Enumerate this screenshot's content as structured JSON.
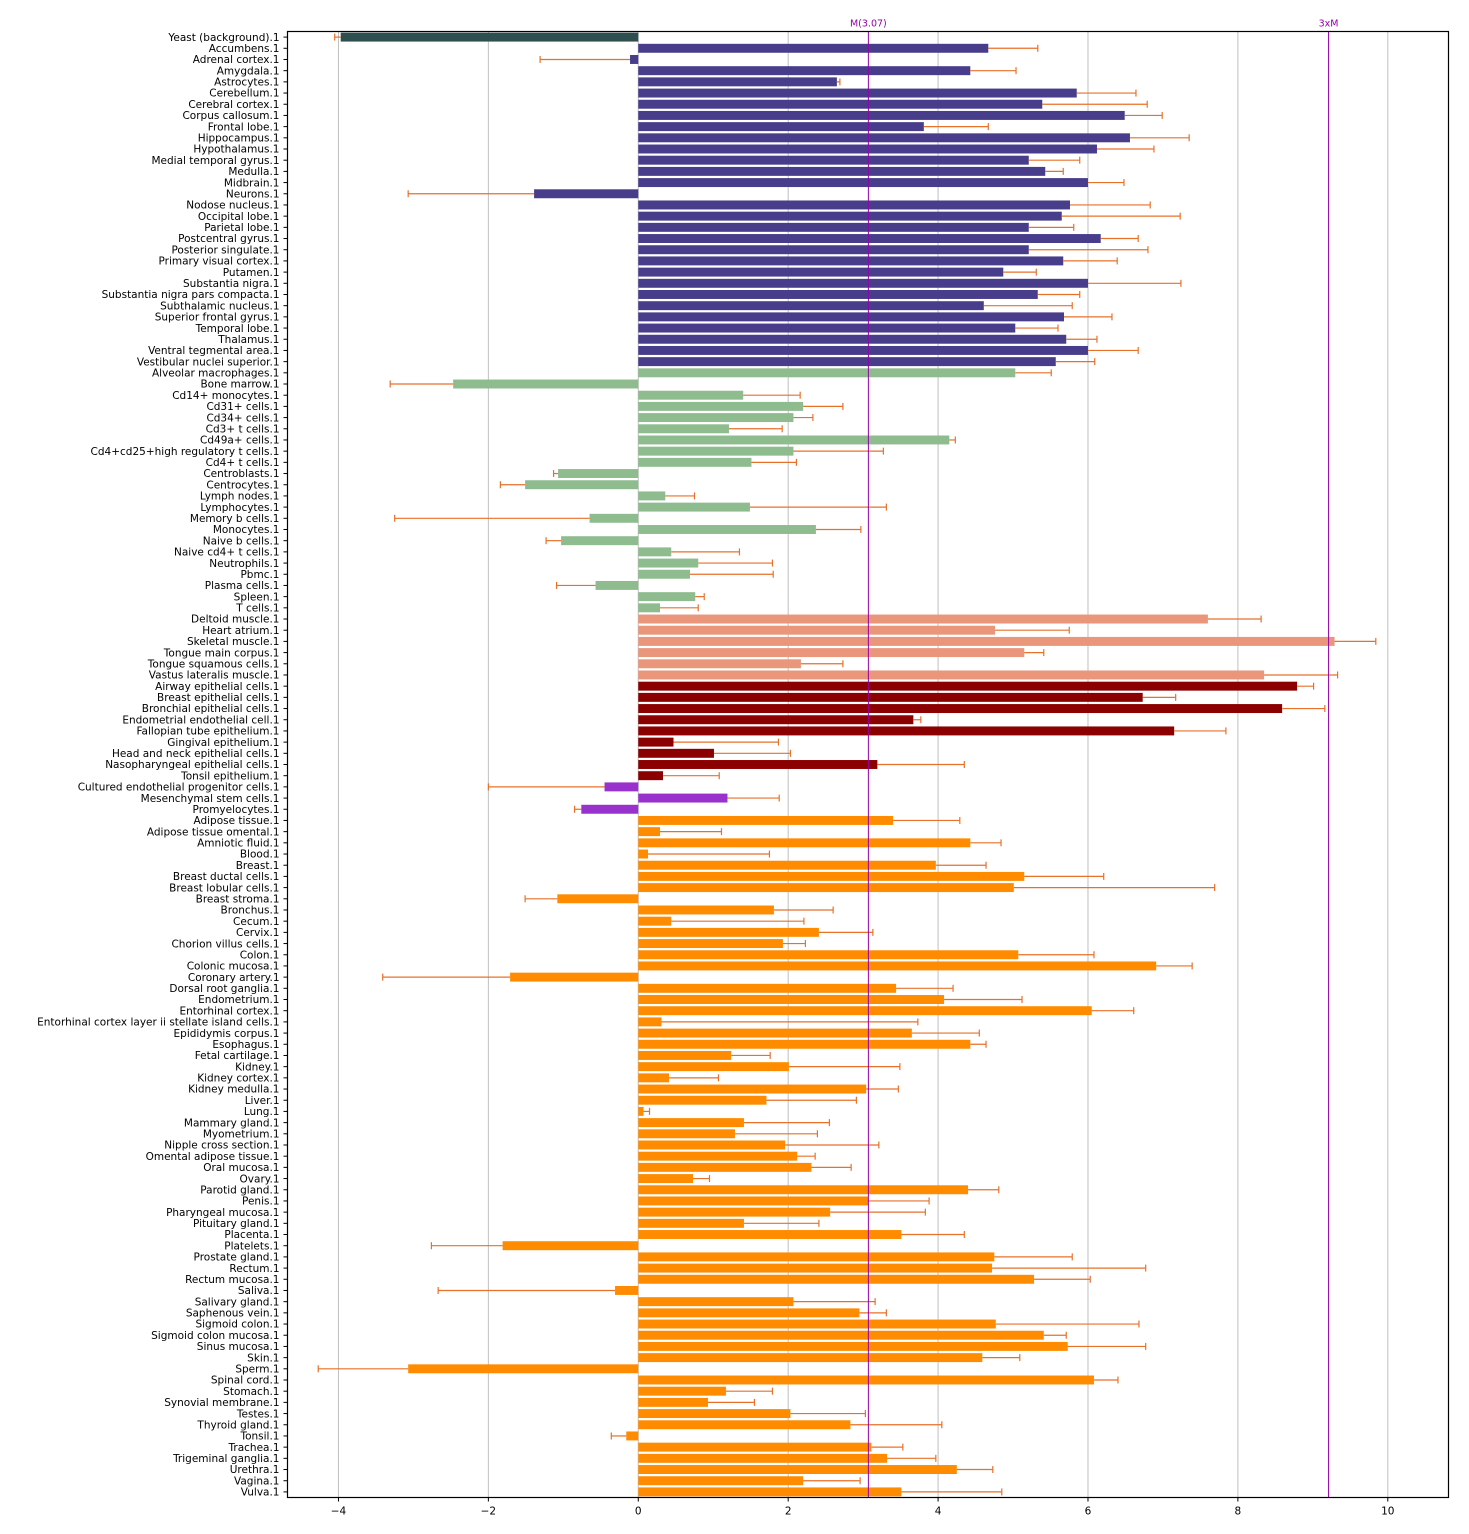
{
  "chart_data": {
    "type": "bar",
    "orientation": "horizontal",
    "title": "",
    "xlabel": "",
    "ylabel": "",
    "xlim": [
      -4.68,
      10.81
    ],
    "xticks": [
      -4,
      -2,
      0,
      2,
      4,
      6,
      8,
      10
    ],
    "xtick_labels": [
      "−4",
      "−2",
      "0",
      "2",
      "4",
      "6",
      "8",
      "10"
    ],
    "grid": "vertical",
    "legend": "none",
    "error_bar_color": "#e8712a",
    "group_colors": {
      "background": "#2f4f4f",
      "brain": "#483d8b",
      "immune": "#8fbc8f",
      "muscle": "#e9967a",
      "epithelial": "#8b0000",
      "stem": "#9932cc",
      "tissue": "#ff8c00"
    },
    "reference_lines": [
      {
        "label": "M(3.07)",
        "value": 3.07,
        "color": "#9400a8"
      },
      {
        "label": "3xM",
        "value": 9.21,
        "color": "#9400a8"
      }
    ],
    "bars": [
      {
        "label": "Yeast (background).1",
        "value": -3.97,
        "error_end": -4.05,
        "group": "background"
      },
      {
        "label": "Accumbens.1",
        "value": 4.67,
        "error_end": 5.33,
        "group": "brain"
      },
      {
        "label": "Adrenal cortex.1",
        "value": -0.11,
        "error_end": -1.31,
        "group": "brain"
      },
      {
        "label": "Amygdala.1",
        "value": 4.43,
        "error_end": 5.04,
        "group": "brain"
      },
      {
        "label": "Astrocytes.1",
        "value": 2.65,
        "error_end": 2.69,
        "group": "brain"
      },
      {
        "label": "Cerebellum.1",
        "value": 5.85,
        "error_end": 6.64,
        "group": "brain"
      },
      {
        "label": "Cerebral cortex.1",
        "value": 5.39,
        "error_end": 6.79,
        "group": "brain"
      },
      {
        "label": "Corpus callosum.1",
        "value": 6.49,
        "error_end": 6.99,
        "group": "brain"
      },
      {
        "label": "Frontal lobe.1",
        "value": 3.81,
        "error_end": 4.67,
        "group": "brain"
      },
      {
        "label": "Hippocampus.1",
        "value": 6.56,
        "error_end": 7.35,
        "group": "brain"
      },
      {
        "label": "Hypothalamus.1",
        "value": 6.12,
        "error_end": 6.88,
        "group": "brain"
      },
      {
        "label": "Medial temporal gyrus.1",
        "value": 5.21,
        "error_end": 5.89,
        "group": "brain"
      },
      {
        "label": "Medulla.1",
        "value": 5.43,
        "error_end": 5.67,
        "group": "brain"
      },
      {
        "label": "Midbrain.1",
        "value": 6.0,
        "error_end": 6.48,
        "group": "brain"
      },
      {
        "label": "Neurons.1",
        "value": -1.39,
        "error_end": -3.07,
        "group": "brain"
      },
      {
        "label": "Nodose nucleus.1",
        "value": 5.76,
        "error_end": 6.83,
        "group": "brain"
      },
      {
        "label": "Occipital lobe.1",
        "value": 5.65,
        "error_end": 7.23,
        "group": "brain"
      },
      {
        "label": "Parietal lobe.1",
        "value": 5.21,
        "error_end": 5.81,
        "group": "brain"
      },
      {
        "label": "Postcentral gyrus.1",
        "value": 6.17,
        "error_end": 6.67,
        "group": "brain"
      },
      {
        "label": "Posterior singulate.1",
        "value": 5.21,
        "error_end": 6.8,
        "group": "brain"
      },
      {
        "label": "Primary visual cortex.1",
        "value": 5.67,
        "error_end": 6.39,
        "group": "brain"
      },
      {
        "label": "Putamen.1",
        "value": 4.87,
        "error_end": 5.31,
        "group": "brain"
      },
      {
        "label": "Substantia nigra.1",
        "value": 6.0,
        "error_end": 7.24,
        "group": "brain"
      },
      {
        "label": "Substantia nigra pars compacta.1",
        "value": 5.33,
        "error_end": 5.89,
        "group": "brain"
      },
      {
        "label": "Subthalamic nucleus.1",
        "value": 4.61,
        "error_end": 5.79,
        "group": "brain"
      },
      {
        "label": "Superior frontal gyrus.1",
        "value": 5.68,
        "error_end": 6.32,
        "group": "brain"
      },
      {
        "label": "Temporal lobe.1",
        "value": 5.03,
        "error_end": 5.6,
        "group": "brain"
      },
      {
        "label": "Thalamus.1",
        "value": 5.71,
        "error_end": 6.12,
        "group": "brain"
      },
      {
        "label": "Ventral tegmental area.1",
        "value": 6.0,
        "error_end": 6.67,
        "group": "brain"
      },
      {
        "label": "Vestibular nuclei superior.1",
        "value": 5.57,
        "error_end": 6.09,
        "group": "brain"
      },
      {
        "label": "Alveolar macrophages.1",
        "value": 5.03,
        "error_end": 5.51,
        "group": "immune"
      },
      {
        "label": "Bone marrow.1",
        "value": -2.47,
        "error_end": -3.31,
        "group": "immune"
      },
      {
        "label": "Cd14+ monocytes.1",
        "value": 1.4,
        "error_end": 2.16,
        "group": "immune"
      },
      {
        "label": "Cd31+ cells.1",
        "value": 2.2,
        "error_end": 2.73,
        "group": "immune"
      },
      {
        "label": "Cd34+ cells.1",
        "value": 2.07,
        "error_end": 2.33,
        "group": "immune"
      },
      {
        "label": "Cd3+ t cells.1",
        "value": 1.21,
        "error_end": 1.92,
        "group": "immune"
      },
      {
        "label": "Cd49a+ cells.1",
        "value": 4.15,
        "error_end": 4.23,
        "group": "immune"
      },
      {
        "label": "Cd4+cd25+high regulatory t cells.1",
        "value": 2.07,
        "error_end": 3.27,
        "group": "immune"
      },
      {
        "label": "Cd4+ t cells.1",
        "value": 1.51,
        "error_end": 2.11,
        "group": "immune"
      },
      {
        "label": "Centroblasts.1",
        "value": -1.07,
        "error_end": -1.13,
        "group": "immune"
      },
      {
        "label": "Centrocytes.1",
        "value": -1.51,
        "error_end": -1.84,
        "group": "immune"
      },
      {
        "label": "Lymph nodes.1",
        "value": 0.36,
        "error_end": 0.75,
        "group": "immune"
      },
      {
        "label": "Lymphocytes.1",
        "value": 1.49,
        "error_end": 3.31,
        "group": "immune"
      },
      {
        "label": "Memory b cells.1",
        "value": -0.65,
        "error_end": -3.25,
        "group": "immune"
      },
      {
        "label": "Monocytes.1",
        "value": 2.37,
        "error_end": 2.97,
        "group": "immune"
      },
      {
        "label": "Naive b cells.1",
        "value": -1.03,
        "error_end": -1.23,
        "group": "immune"
      },
      {
        "label": "Naive cd4+ t cells.1",
        "value": 0.44,
        "error_end": 1.35,
        "group": "immune"
      },
      {
        "label": "Neutrophils.1",
        "value": 0.8,
        "error_end": 1.79,
        "group": "immune"
      },
      {
        "label": "Pbmc.1",
        "value": 0.69,
        "error_end": 1.8,
        "group": "immune"
      },
      {
        "label": "Plasma cells.1",
        "value": -0.57,
        "error_end": -1.09,
        "group": "immune"
      },
      {
        "label": "Spleen.1",
        "value": 0.76,
        "error_end": 0.88,
        "group": "immune"
      },
      {
        "label": "T cells.1",
        "value": 0.29,
        "error_end": 0.8,
        "group": "immune"
      },
      {
        "label": "Deltoid muscle.1",
        "value": 7.6,
        "error_end": 8.31,
        "group": "muscle"
      },
      {
        "label": "Heart atrium.1",
        "value": 4.76,
        "error_end": 5.75,
        "group": "muscle"
      },
      {
        "label": "Skeletal muscle.1",
        "value": 9.29,
        "error_end": 9.84,
        "group": "muscle"
      },
      {
        "label": "Tongue main corpus.1",
        "value": 5.15,
        "error_end": 5.41,
        "group": "muscle"
      },
      {
        "label": "Tongue squamous cells.1",
        "value": 2.17,
        "error_end": 2.73,
        "group": "muscle"
      },
      {
        "label": "Vastus lateralis muscle.1",
        "value": 8.35,
        "error_end": 9.33,
        "group": "muscle"
      },
      {
        "label": "Airway epithelial cells.1",
        "value": 8.79,
        "error_end": 9.01,
        "group": "epithelial"
      },
      {
        "label": "Breast epithelial cells.1",
        "value": 6.73,
        "error_end": 7.17,
        "group": "epithelial"
      },
      {
        "label": "Bronchial epithelial cells.1",
        "value": 8.59,
        "error_end": 9.16,
        "group": "epithelial"
      },
      {
        "label": "Endometrial endothelial cell.1",
        "value": 3.67,
        "error_end": 3.77,
        "group": "epithelial"
      },
      {
        "label": "Fallopian tube epithelium.1",
        "value": 7.15,
        "error_end": 7.84,
        "group": "epithelial"
      },
      {
        "label": "Gingival epithelium.1",
        "value": 0.47,
        "error_end": 1.87,
        "group": "epithelial"
      },
      {
        "label": "Head and neck epithelial cells.1",
        "value": 1.01,
        "error_end": 2.03,
        "group": "epithelial"
      },
      {
        "label": "Nasopharyngeal epithelial cells.1",
        "value": 3.19,
        "error_end": 4.35,
        "group": "epithelial"
      },
      {
        "label": "Tonsil epithelium.1",
        "value": 0.33,
        "error_end": 1.08,
        "group": "epithelial"
      },
      {
        "label": "Cultured endothelial progenitor cells.1",
        "value": -0.45,
        "error_end": -2.0,
        "group": "stem"
      },
      {
        "label": "Mesenchymal stem cells.1",
        "value": 1.19,
        "error_end": 1.88,
        "group": "stem"
      },
      {
        "label": "Promyelocytes.1",
        "value": -0.76,
        "error_end": -0.85,
        "group": "stem"
      },
      {
        "label": "Adipose tissue.1",
        "value": 3.4,
        "error_end": 4.29,
        "group": "tissue"
      },
      {
        "label": "Adipose tissue omental.1",
        "value": 0.29,
        "error_end": 1.11,
        "group": "tissue"
      },
      {
        "label": "Amniotic fluid.1",
        "value": 4.43,
        "error_end": 4.84,
        "group": "tissue"
      },
      {
        "label": "Blood.1",
        "value": 0.13,
        "error_end": 1.75,
        "group": "tissue"
      },
      {
        "label": "Breast.1",
        "value": 3.97,
        "error_end": 4.64,
        "group": "tissue"
      },
      {
        "label": "Breast ductal cells.1",
        "value": 5.15,
        "error_end": 6.21,
        "group": "tissue"
      },
      {
        "label": "Breast lobular cells.1",
        "value": 5.01,
        "error_end": 7.69,
        "group": "tissue"
      },
      {
        "label": "Breast stroma.1",
        "value": -1.08,
        "error_end": -1.51,
        "group": "tissue"
      },
      {
        "label": "Bronchus.1",
        "value": 1.81,
        "error_end": 2.6,
        "group": "tissue"
      },
      {
        "label": "Cecum.1",
        "value": 0.44,
        "error_end": 2.21,
        "group": "tissue"
      },
      {
        "label": "Cervix.1",
        "value": 2.41,
        "error_end": 3.13,
        "group": "tissue"
      },
      {
        "label": "Chorion villus cells.1",
        "value": 1.93,
        "error_end": 2.23,
        "group": "tissue"
      },
      {
        "label": "Colon.1",
        "value": 5.07,
        "error_end": 6.08,
        "group": "tissue"
      },
      {
        "label": "Colonic mucosa.1",
        "value": 6.91,
        "error_end": 7.39,
        "group": "tissue"
      },
      {
        "label": "Coronary artery.1",
        "value": -1.71,
        "error_end": -3.41,
        "group": "tissue"
      },
      {
        "label": "Dorsal root ganglia.1",
        "value": 3.44,
        "error_end": 4.2,
        "group": "tissue"
      },
      {
        "label": "Endometrium.1",
        "value": 4.08,
        "error_end": 5.12,
        "group": "tissue"
      },
      {
        "label": "Entorhinal cortex.1",
        "value": 6.05,
        "error_end": 6.61,
        "group": "tissue"
      },
      {
        "label": "Entorhinal cortex layer ii stellate island cells.1",
        "value": 0.31,
        "error_end": 3.73,
        "group": "tissue"
      },
      {
        "label": "Epididymis corpus.1",
        "value": 3.65,
        "error_end": 4.55,
        "group": "tissue"
      },
      {
        "label": "Esophagus.1",
        "value": 4.43,
        "error_end": 4.64,
        "group": "tissue"
      },
      {
        "label": "Fetal cartilage.1",
        "value": 1.24,
        "error_end": 1.76,
        "group": "tissue"
      },
      {
        "label": "Kidney.1",
        "value": 2.01,
        "error_end": 3.49,
        "group": "tissue"
      },
      {
        "label": "Kidney cortex.1",
        "value": 0.41,
        "error_end": 1.07,
        "group": "tissue"
      },
      {
        "label": "Kidney medulla.1",
        "value": 3.04,
        "error_end": 3.47,
        "group": "tissue"
      },
      {
        "label": "Liver.1",
        "value": 1.71,
        "error_end": 2.91,
        "group": "tissue"
      },
      {
        "label": "Lung.1",
        "value": 0.07,
        "error_end": 0.15,
        "group": "tissue"
      },
      {
        "label": "Mammary gland.1",
        "value": 1.41,
        "error_end": 2.55,
        "group": "tissue"
      },
      {
        "label": "Myometrium.1",
        "value": 1.29,
        "error_end": 2.39,
        "group": "tissue"
      },
      {
        "label": "Nipple cross section.1",
        "value": 1.96,
        "error_end": 3.21,
        "group": "tissue"
      },
      {
        "label": "Omental adipose tissue.1",
        "value": 2.12,
        "error_end": 2.36,
        "group": "tissue"
      },
      {
        "label": "Oral mucosa.1",
        "value": 2.31,
        "error_end": 2.84,
        "group": "tissue"
      },
      {
        "label": "Ovary.1",
        "value": 0.73,
        "error_end": 0.95,
        "group": "tissue"
      },
      {
        "label": "Parotid gland.1",
        "value": 4.4,
        "error_end": 4.81,
        "group": "tissue"
      },
      {
        "label": "Penis.1",
        "value": 3.07,
        "error_end": 3.88,
        "group": "tissue"
      },
      {
        "label": "Pharyngeal mucosa.1",
        "value": 2.56,
        "error_end": 3.83,
        "group": "tissue"
      },
      {
        "label": "Pituitary gland.1",
        "value": 1.41,
        "error_end": 2.41,
        "group": "tissue"
      },
      {
        "label": "Placenta.1",
        "value": 3.51,
        "error_end": 4.35,
        "group": "tissue"
      },
      {
        "label": "Platelets.1",
        "value": -1.81,
        "error_end": -2.76,
        "group": "tissue"
      },
      {
        "label": "Prostate gland.1",
        "value": 4.75,
        "error_end": 5.79,
        "group": "tissue"
      },
      {
        "label": "Rectum.1",
        "value": 4.72,
        "error_end": 6.77,
        "group": "tissue"
      },
      {
        "label": "Rectum mucosa.1",
        "value": 5.28,
        "error_end": 6.03,
        "group": "tissue"
      },
      {
        "label": "Saliva.1",
        "value": -0.31,
        "error_end": -2.67,
        "group": "tissue"
      },
      {
        "label": "Salivary gland.1",
        "value": 2.07,
        "error_end": 3.16,
        "group": "tissue"
      },
      {
        "label": "Saphenous vein.1",
        "value": 2.95,
        "error_end": 3.31,
        "group": "tissue"
      },
      {
        "label": "Sigmoid colon.1",
        "value": 4.77,
        "error_end": 6.68,
        "group": "tissue"
      },
      {
        "label": "Sigmoid colon mucosa.1",
        "value": 5.41,
        "error_end": 5.71,
        "group": "tissue"
      },
      {
        "label": "Sinus mucosa.1",
        "value": 5.73,
        "error_end": 6.77,
        "group": "tissue"
      },
      {
        "label": "Skin.1",
        "value": 4.59,
        "error_end": 5.09,
        "group": "tissue"
      },
      {
        "label": "Sperm.1",
        "value": -3.07,
        "error_end": -4.27,
        "group": "tissue"
      },
      {
        "label": "Spinal cord.1",
        "value": 6.08,
        "error_end": 6.4,
        "group": "tissue"
      },
      {
        "label": "Stomach.1",
        "value": 1.17,
        "error_end": 1.79,
        "group": "tissue"
      },
      {
        "label": "Synovial membrane.1",
        "value": 0.93,
        "error_end": 1.55,
        "group": "tissue"
      },
      {
        "label": "Testes.1",
        "value": 2.03,
        "error_end": 3.03,
        "group": "tissue"
      },
      {
        "label": "Thyroid gland.1",
        "value": 2.83,
        "error_end": 4.05,
        "group": "tissue"
      },
      {
        "label": "Tonsil.1",
        "value": -0.16,
        "error_end": -0.36,
        "group": "tissue"
      },
      {
        "label": "Trachea.1",
        "value": 3.11,
        "error_end": 3.53,
        "group": "tissue"
      },
      {
        "label": "Trigeminal ganglia.1",
        "value": 3.32,
        "error_end": 3.97,
        "group": "tissue"
      },
      {
        "label": "Urethra.1",
        "value": 4.25,
        "error_end": 4.73,
        "group": "tissue"
      },
      {
        "label": "Vagina.1",
        "value": 2.2,
        "error_end": 2.96,
        "group": "tissue"
      },
      {
        "label": "Vulva.1",
        "value": 3.51,
        "error_end": 4.85,
        "group": "tissue"
      }
    ]
  }
}
